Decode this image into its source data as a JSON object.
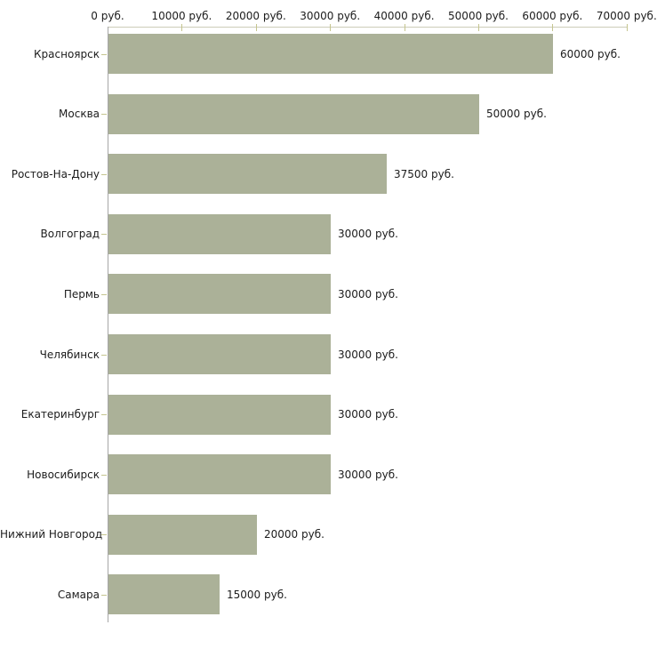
{
  "chart_data": {
    "type": "bar",
    "orientation": "horizontal",
    "title": "",
    "categories": [
      "Красноярск",
      "Москва",
      "Ростов-На-Дону",
      "Волгоград",
      "Пермь",
      "Челябинск",
      "Екатеринбург",
      "Новосибирск",
      "Нижний Новгород",
      "Самара"
    ],
    "values": [
      60000,
      50000,
      37500,
      30000,
      30000,
      30000,
      30000,
      30000,
      20000,
      15000
    ],
    "value_labels": [
      "60000 руб.",
      "50000 руб.",
      "37500 руб.",
      "30000 руб.",
      "30000 руб.",
      "30000 руб.",
      "30000 руб.",
      "30000 руб.",
      "20000 руб.",
      "15000 руб."
    ],
    "x_axis": {
      "position": "top",
      "min": 0,
      "max": 70000,
      "tick_interval": 10000,
      "tick_labels": [
        "0 руб.",
        "10000 руб.",
        "20000 руб.",
        "30000 руб.",
        "40000 руб.",
        "50000 руб.",
        "60000 руб.",
        "70000 руб."
      ]
    },
    "xlabel": "",
    "ylabel": "",
    "legend": "none",
    "grid": false,
    "colors": {
      "bar": "#abb198",
      "axis_line": "#ccccb8",
      "tick": "#c5c58f",
      "category_axis_line": "#a6a6a6",
      "text": "#1c1c1c",
      "background": "#ffffff"
    }
  }
}
